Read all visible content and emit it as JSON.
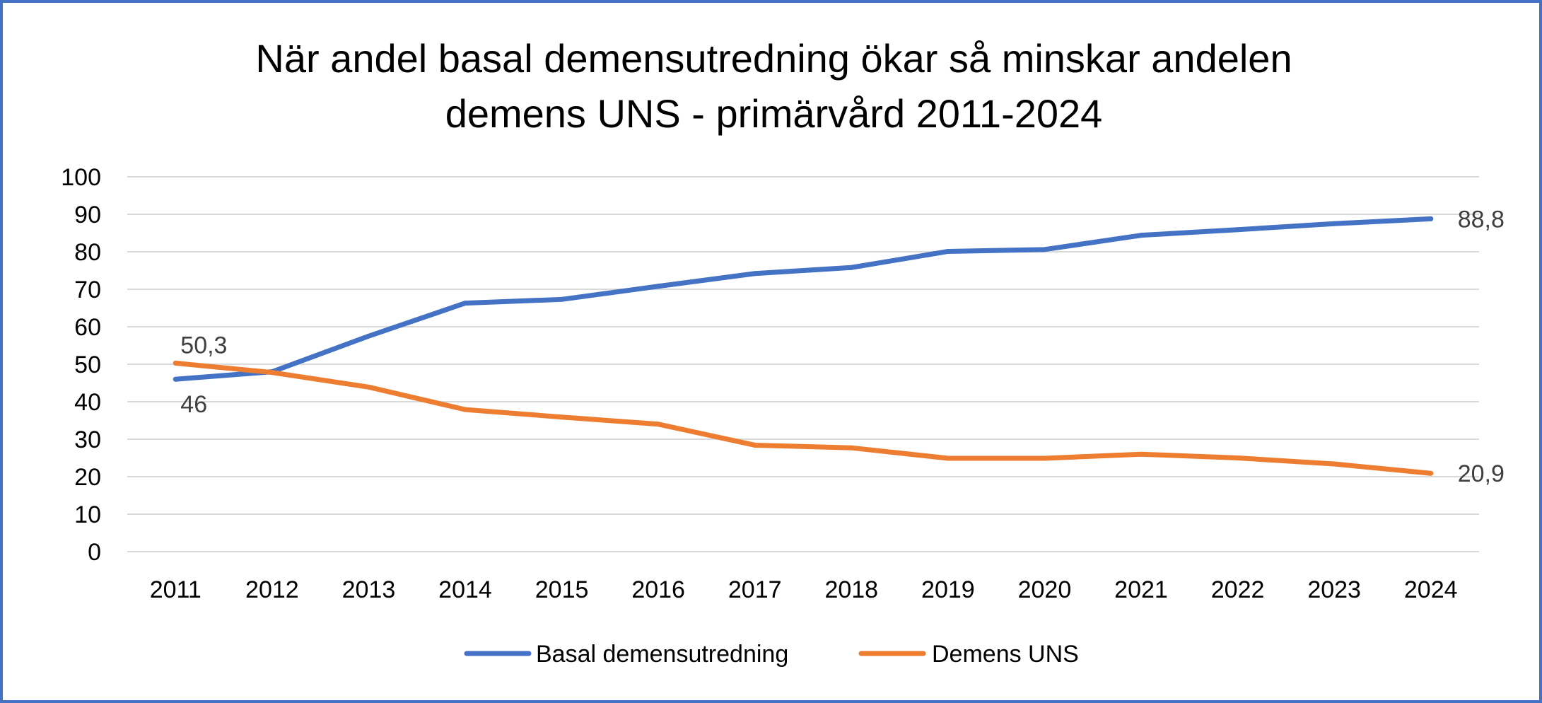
{
  "chart_data": {
    "type": "line",
    "title": [
      "När andel basal demensutredning ökar så minskar andelen",
      "demens UNS - primärvård 2011-2024"
    ],
    "categories": [
      "2011",
      "2012",
      "2013",
      "2014",
      "2015",
      "2016",
      "2017",
      "2018",
      "2019",
      "2020",
      "2021",
      "2022",
      "2023",
      "2024"
    ],
    "series": [
      {
        "name": "Basal demensutredning",
        "color": "#4472C4",
        "values": [
          46,
          48,
          57.5,
          66.3,
          67.3,
          70.8,
          74.2,
          75.8,
          80.1,
          80.6,
          84.4,
          85.9,
          87.5,
          88.8
        ]
      },
      {
        "name": "Demens UNS",
        "color": "#ED7D31",
        "values": [
          50.3,
          47.8,
          43.9,
          37.9,
          35.9,
          34.0,
          28.4,
          27.7,
          24.9,
          24.9,
          26.0,
          25.0,
          23.4,
          20.9
        ]
      }
    ],
    "data_labels": [
      {
        "series": 0,
        "index": 0,
        "text": "46"
      },
      {
        "series": 0,
        "index": 13,
        "text": "88,8"
      },
      {
        "series": 1,
        "index": 0,
        "text": "50,3"
      },
      {
        "series": 1,
        "index": 13,
        "text": "20,9"
      }
    ],
    "y_ticks": [
      "0",
      "10",
      "20",
      "30",
      "40",
      "50",
      "60",
      "70",
      "80",
      "90",
      "100"
    ],
    "ylim": [
      0,
      100
    ],
    "xlabel": "",
    "ylabel": "",
    "grid": true,
    "legend_position": "bottom"
  }
}
